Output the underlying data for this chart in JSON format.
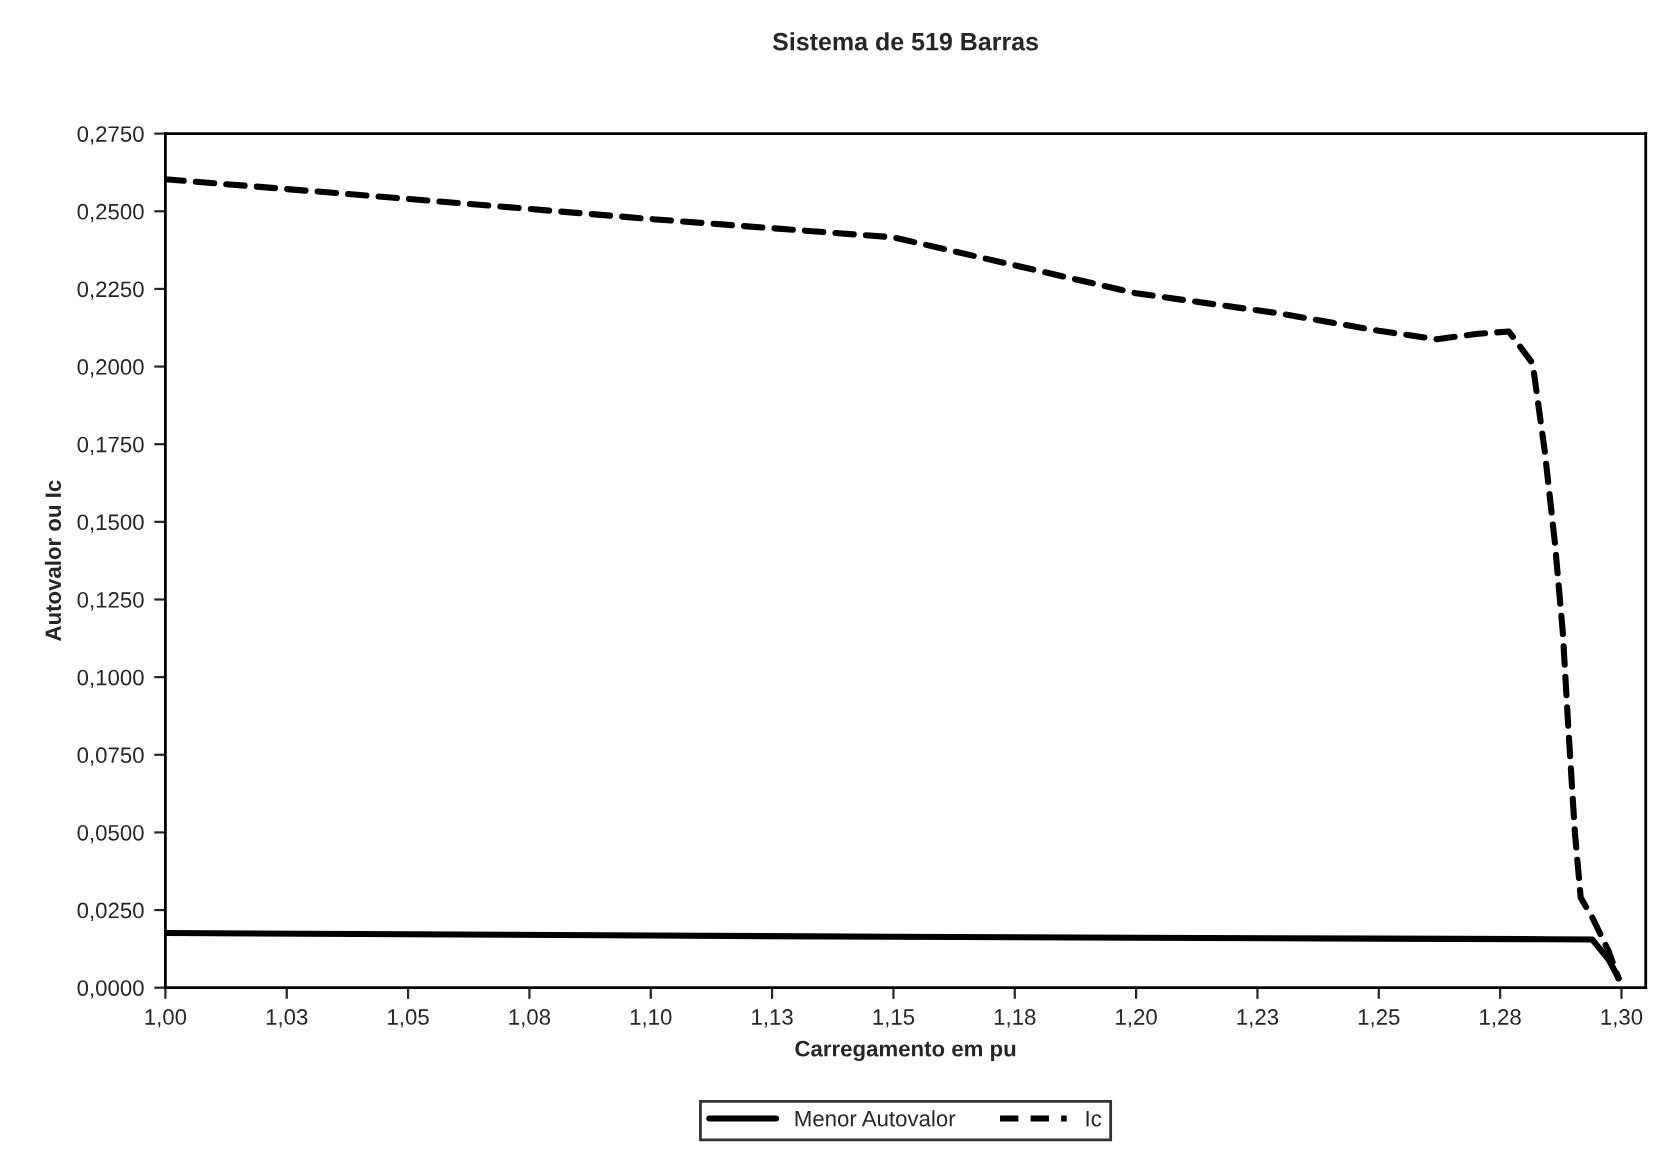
{
  "chart_data": {
    "type": "line",
    "title": "Sistema de 519 Barras",
    "xlabel": "Carregamento em pu",
    "ylabel": "Autovalor ou Ic",
    "xlim": [
      1.0,
      1.305
    ],
    "ylim": [
      0,
      0.275
    ],
    "xticks": [
      {
        "value": 1.0,
        "label": "1,00"
      },
      {
        "value": 1.025,
        "label": "1,03"
      },
      {
        "value": 1.05,
        "label": "1,05"
      },
      {
        "value": 1.075,
        "label": "1,08"
      },
      {
        "value": 1.1,
        "label": "1,10"
      },
      {
        "value": 1.125,
        "label": "1,13"
      },
      {
        "value": 1.15,
        "label": "1,15"
      },
      {
        "value": 1.175,
        "label": "1,18"
      },
      {
        "value": 1.2,
        "label": "1,20"
      },
      {
        "value": 1.225,
        "label": "1,23"
      },
      {
        "value": 1.25,
        "label": "1,25"
      },
      {
        "value": 1.275,
        "label": "1,28"
      },
      {
        "value": 1.3,
        "label": "1,30"
      }
    ],
    "yticks": [
      {
        "value": 0,
        "label": "0,0000"
      },
      {
        "value": 0.025,
        "label": "0,0250"
      },
      {
        "value": 0.05,
        "label": "0,0500"
      },
      {
        "value": 0.075,
        "label": "0,0750"
      },
      {
        "value": 0.1,
        "label": "0,1000"
      },
      {
        "value": 0.125,
        "label": "0,1250"
      },
      {
        "value": 0.15,
        "label": "0,1500"
      },
      {
        "value": 0.175,
        "label": "0,1750"
      },
      {
        "value": 0.2,
        "label": "0,2000"
      },
      {
        "value": 0.225,
        "label": "0,2250"
      },
      {
        "value": 0.25,
        "label": "0,2500"
      },
      {
        "value": 0.275,
        "label": "0,2750"
      }
    ],
    "grid": false,
    "legend": "bottom",
    "marker": "none",
    "series": [
      {
        "name": "Menor Autovalor",
        "color": "#000000",
        "line_style": "solid",
        "x": [
          1.0,
          1.05,
          1.1,
          1.15,
          1.2,
          1.25,
          1.285,
          1.294,
          1.2974,
          1.2994
        ],
        "values": [
          0.0176,
          0.0172,
          0.0168,
          0.0164,
          0.0161,
          0.0158,
          0.0156,
          0.0155,
          0.009,
          0.003
        ]
      },
      {
        "name": "Ic",
        "color": "#000000",
        "line_style": "dashed",
        "x": [
          1.0,
          1.05,
          1.1,
          1.15,
          1.2,
          1.23,
          1.25,
          1.262,
          1.27,
          1.2768,
          1.2817,
          1.2842,
          1.2863,
          1.2879,
          1.2891,
          1.2904,
          1.2916,
          1.294,
          1.2974,
          1.2994
        ],
        "values": [
          0.2603,
          0.254,
          0.2475,
          0.2416,
          0.2236,
          0.217,
          0.2115,
          0.2088,
          0.2105,
          0.2113,
          0.201,
          0.1727,
          0.143,
          0.1147,
          0.0825,
          0.05,
          0.029,
          0.0226,
          0.0116,
          0.003
        ]
      }
    ]
  }
}
